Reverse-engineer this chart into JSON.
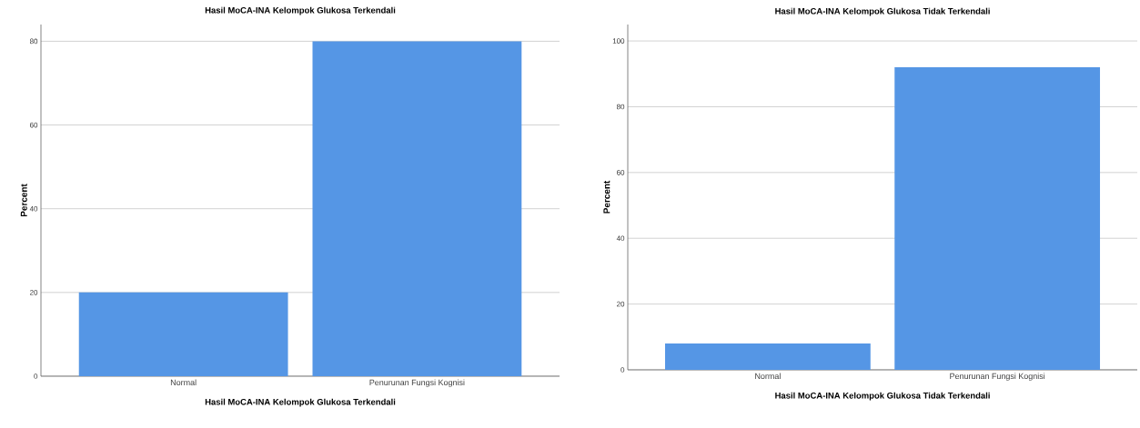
{
  "chart_data": [
    {
      "type": "bar",
      "title": "Hasil MoCA-INA Kelompok Glukosa Terkendali",
      "xlabel": "Hasil MoCA-INA Kelompok Glukosa Terkendali",
      "ylabel": "Percent",
      "categories": [
        "Normal",
        "Penurunan Fungsi Kognisi"
      ],
      "values": [
        20,
        80
      ],
      "color": "#5596e5",
      "ylim": [
        0,
        84
      ],
      "yticks": [
        0,
        20,
        40,
        60,
        80
      ],
      "grid": "y"
    },
    {
      "type": "bar",
      "title": "Hasil MoCA-INA Kelompok Glukosa Tidak Terkendali",
      "xlabel": "Hasil MoCA-INA Kelompok Glukosa Tidak Terkendali",
      "ylabel": "Percent",
      "categories": [
        "Normal",
        "Penurunan Fungsi Kognisi"
      ],
      "values": [
        8,
        92
      ],
      "color": "#5596e5",
      "ylim": [
        0,
        105
      ],
      "yticks": [
        0,
        20,
        40,
        60,
        80,
        100
      ],
      "grid": "y"
    }
  ]
}
